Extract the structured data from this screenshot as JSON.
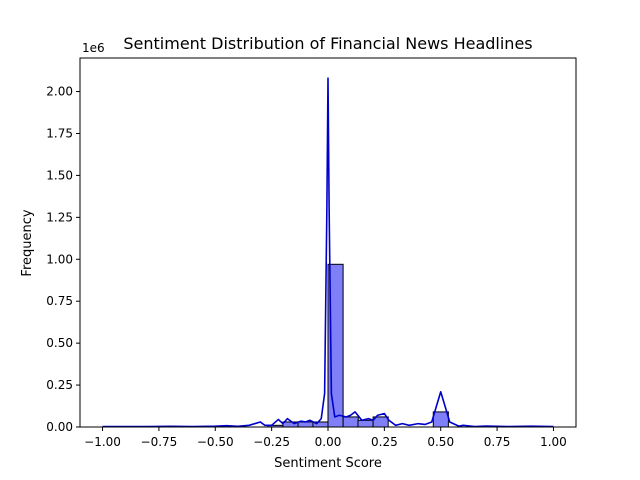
{
  "chart_data": {
    "type": "bar",
    "title": "Sentiment Distribution of Financial News Headlines",
    "xlabel": "Sentiment Score",
    "ylabel": "Frequency",
    "y_offset_label": "1e6",
    "xlim": [
      -1.1,
      1.1
    ],
    "ylim": [
      0,
      2.2
    ],
    "x_ticks": [
      -1.0,
      -0.75,
      -0.5,
      -0.25,
      0.0,
      0.25,
      0.5,
      0.75,
      1.0
    ],
    "x_tick_labels": [
      "−1.00",
      "−0.75",
      "−0.50",
      "−0.25",
      "0.00",
      "0.25",
      "0.50",
      "0.75",
      "1.00"
    ],
    "y_ticks": [
      0.0,
      0.25,
      0.5,
      0.75,
      1.0,
      1.25,
      1.5,
      1.75,
      2.0
    ],
    "y_tick_labels": [
      "0.00",
      "0.25",
      "0.50",
      "0.75",
      "1.00",
      "1.25",
      "1.50",
      "1.75",
      "2.00"
    ],
    "bins": {
      "left_edges": [
        -0.267,
        -0.2,
        -0.133,
        -0.067,
        0.0,
        0.067,
        0.133,
        0.2,
        0.467
      ],
      "width": 0.067,
      "values": [
        0.01,
        0.03,
        0.03,
        0.03,
        0.97,
        0.06,
        0.04,
        0.06,
        0.09
      ]
    },
    "kde": {
      "x": [
        -1.0,
        -0.8,
        -0.7,
        -0.6,
        -0.5,
        -0.45,
        -0.4,
        -0.35,
        -0.3,
        -0.28,
        -0.25,
        -0.22,
        -0.2,
        -0.18,
        -0.15,
        -0.12,
        -0.1,
        -0.08,
        -0.05,
        -0.03,
        -0.015,
        -0.005,
        0.0,
        0.005,
        0.015,
        0.03,
        0.05,
        0.08,
        0.1,
        0.12,
        0.15,
        0.18,
        0.2,
        0.22,
        0.25,
        0.27,
        0.3,
        0.33,
        0.36,
        0.4,
        0.43,
        0.46,
        0.48,
        0.5,
        0.52,
        0.54,
        0.58,
        0.6,
        0.65,
        0.7,
        0.8,
        0.9,
        1.0
      ],
      "y": [
        0.003,
        0.003,
        0.004,
        0.003,
        0.005,
        0.008,
        0.004,
        0.01,
        0.03,
        0.01,
        0.01,
        0.045,
        0.02,
        0.05,
        0.02,
        0.035,
        0.03,
        0.04,
        0.02,
        0.05,
        0.2,
        1.3,
        2.08,
        1.3,
        0.2,
        0.06,
        0.07,
        0.06,
        0.07,
        0.09,
        0.04,
        0.05,
        0.04,
        0.07,
        0.08,
        0.04,
        0.01,
        0.02,
        0.01,
        0.02,
        0.015,
        0.03,
        0.12,
        0.21,
        0.12,
        0.03,
        0.005,
        0.01,
        0.003,
        0.006,
        0.003,
        0.005,
        0.003
      ]
    },
    "colors": {
      "bar_fill": "#7f7ff8",
      "bar_edge": "#000000",
      "kde_line": "#0000cc"
    },
    "grid": false,
    "legend": "none"
  }
}
